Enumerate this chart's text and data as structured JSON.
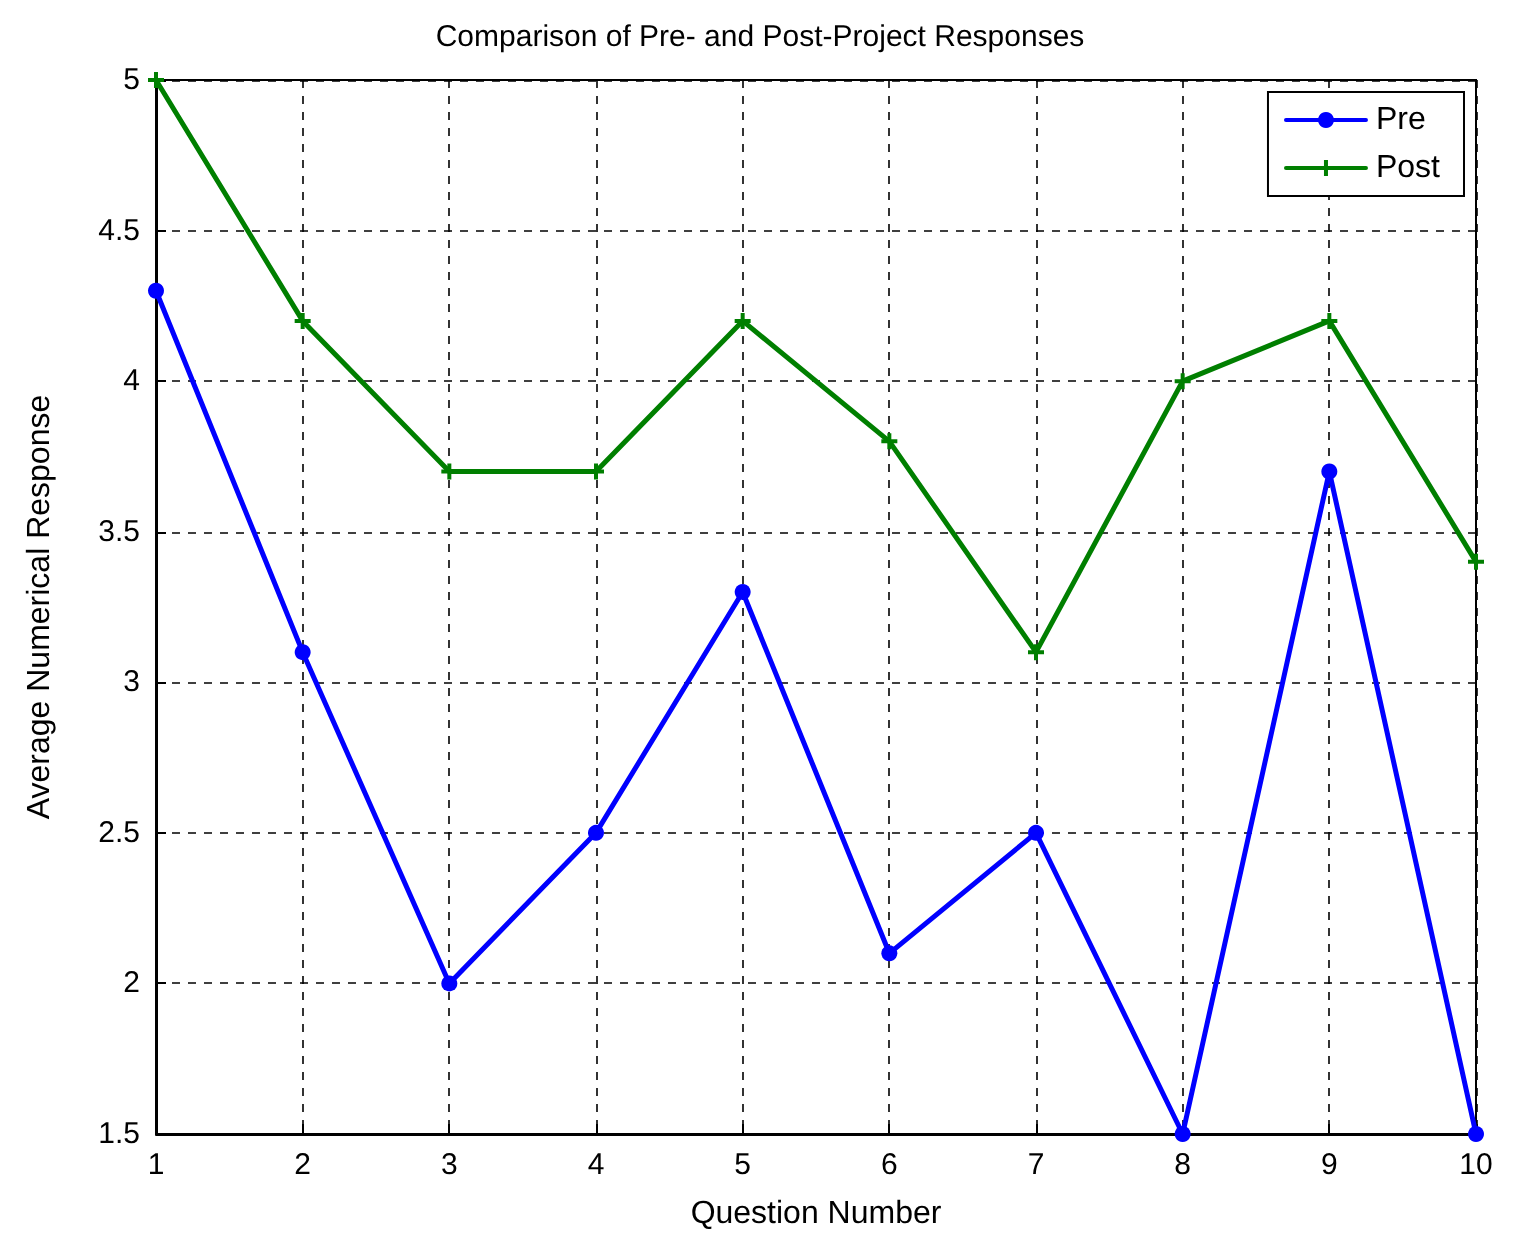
{
  "chart_data": {
    "type": "line",
    "title": "Comparison of Pre- and Post-Project Responses",
    "xlabel": "Question Number",
    "ylabel": "Average Numerical Response",
    "x": [
      1,
      2,
      3,
      4,
      5,
      6,
      7,
      8,
      9,
      10
    ],
    "series": [
      {
        "name": "Pre",
        "color": "#0000ff",
        "marker": "circle",
        "values": [
          4.3,
          3.1,
          2.0,
          2.5,
          3.3,
          2.1,
          2.5,
          1.5,
          3.7,
          1.5
        ]
      },
      {
        "name": "Post",
        "color": "#007f00",
        "marker": "cross",
        "values": [
          5.0,
          4.2,
          3.7,
          3.7,
          4.2,
          3.8,
          3.1,
          4.0,
          4.2,
          3.4
        ]
      }
    ],
    "xlim": [
      1,
      10
    ],
    "xticks": [
      1,
      2,
      3,
      4,
      5,
      6,
      7,
      8,
      9,
      10
    ],
    "ylim": [
      1.5,
      5
    ],
    "yticks": [
      1.5,
      2,
      2.5,
      3,
      3.5,
      4,
      4.5,
      5
    ],
    "grid": true,
    "legend": "top right",
    "line_style": "solid"
  }
}
